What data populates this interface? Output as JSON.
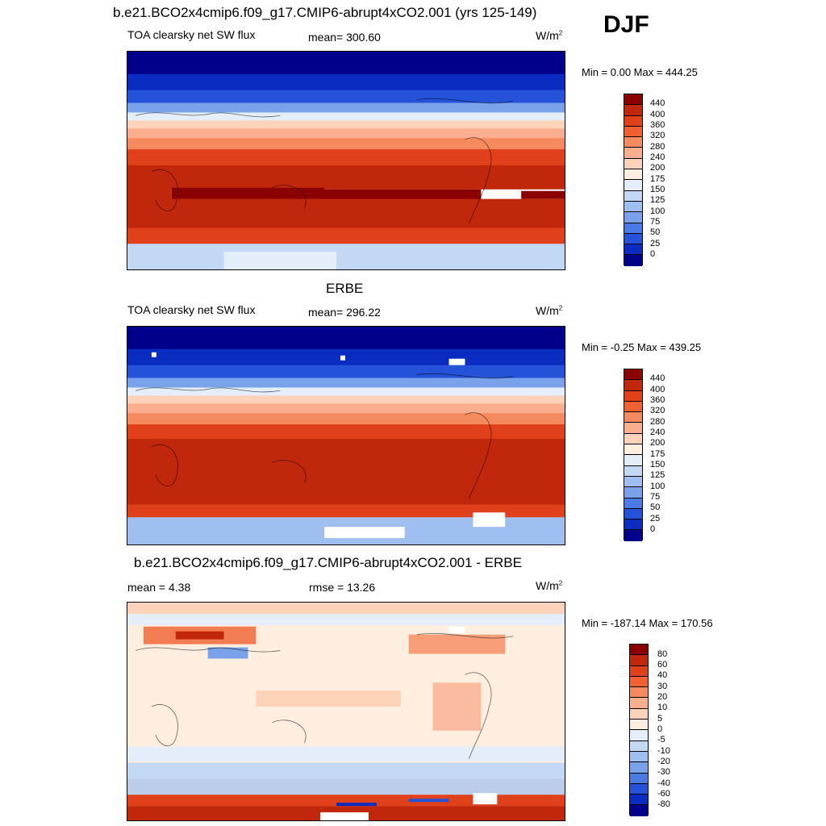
{
  "season": "DJF",
  "panels": [
    {
      "title": "b.e21.BCO2x4cmip6.f09_g17.CMIP6-abrupt4xCO2.001 (yrs 125-149)",
      "left_label": "TOA clearsky net SW flux",
      "center_label": "mean= 300.60",
      "units": "W/m",
      "units_sup": "2",
      "min_max": "Min =   0.00 Max = 444.25",
      "colorbar": {
        "levels": [
          "440",
          "400",
          "360",
          "320",
          "280",
          "240",
          "200",
          "175",
          "150",
          "125",
          "100",
          "75",
          "50",
          "25",
          "0"
        ],
        "colors": [
          "#8b0000",
          "#c1270a",
          "#e0401a",
          "#f06030",
          "#f58a5e",
          "#f9ae8e",
          "#fcd2b8",
          "#fdeee0",
          "#e4eefb",
          "#c2d8f5",
          "#9fbff0",
          "#7aa2ea",
          "#4a7ae4",
          "#2452d8",
          "#0a2cc0",
          "#00008b"
        ]
      }
    },
    {
      "title": "ERBE",
      "left_label": "TOA clearsky net SW flux",
      "center_label": "mean= 296.22",
      "units": "W/m",
      "units_sup": "2",
      "min_max": "Min =  -0.25 Max = 439.25",
      "colorbar": {
        "levels": [
          "440",
          "400",
          "360",
          "320",
          "280",
          "240",
          "200",
          "175",
          "150",
          "125",
          "100",
          "75",
          "50",
          "25",
          "0"
        ],
        "colors": [
          "#8b0000",
          "#c1270a",
          "#e0401a",
          "#f06030",
          "#f58a5e",
          "#f9ae8e",
          "#fcd2b8",
          "#fdeee0",
          "#e4eefb",
          "#c2d8f5",
          "#9fbff0",
          "#7aa2ea",
          "#4a7ae4",
          "#2452d8",
          "#0a2cc0",
          "#00008b"
        ]
      }
    },
    {
      "title": "b.e21.BCO2x4cmip6.f09_g17.CMIP6-abrupt4xCO2.001 - ERBE",
      "left_label": "mean =   4.38",
      "center_label": "rmse =  13.26",
      "units": "W/m",
      "units_sup": "2",
      "min_max": "Min = -187.14 Max = 170.56",
      "colorbar": {
        "levels": [
          "80",
          "60",
          "40",
          "30",
          "20",
          "10",
          "5",
          "0",
          "-5",
          "-10",
          "-20",
          "-30",
          "-40",
          "-60",
          "-80"
        ],
        "colors": [
          "#8b0000",
          "#c1270a",
          "#e0401a",
          "#f06030",
          "#f58a5e",
          "#f9ae8e",
          "#fcd2b8",
          "#fdeee0",
          "#e4eefb",
          "#c2d8f5",
          "#9fbff0",
          "#7aa2ea",
          "#4a7ae4",
          "#2452d8",
          "#0a2cc0",
          "#00008b"
        ]
      }
    }
  ]
}
